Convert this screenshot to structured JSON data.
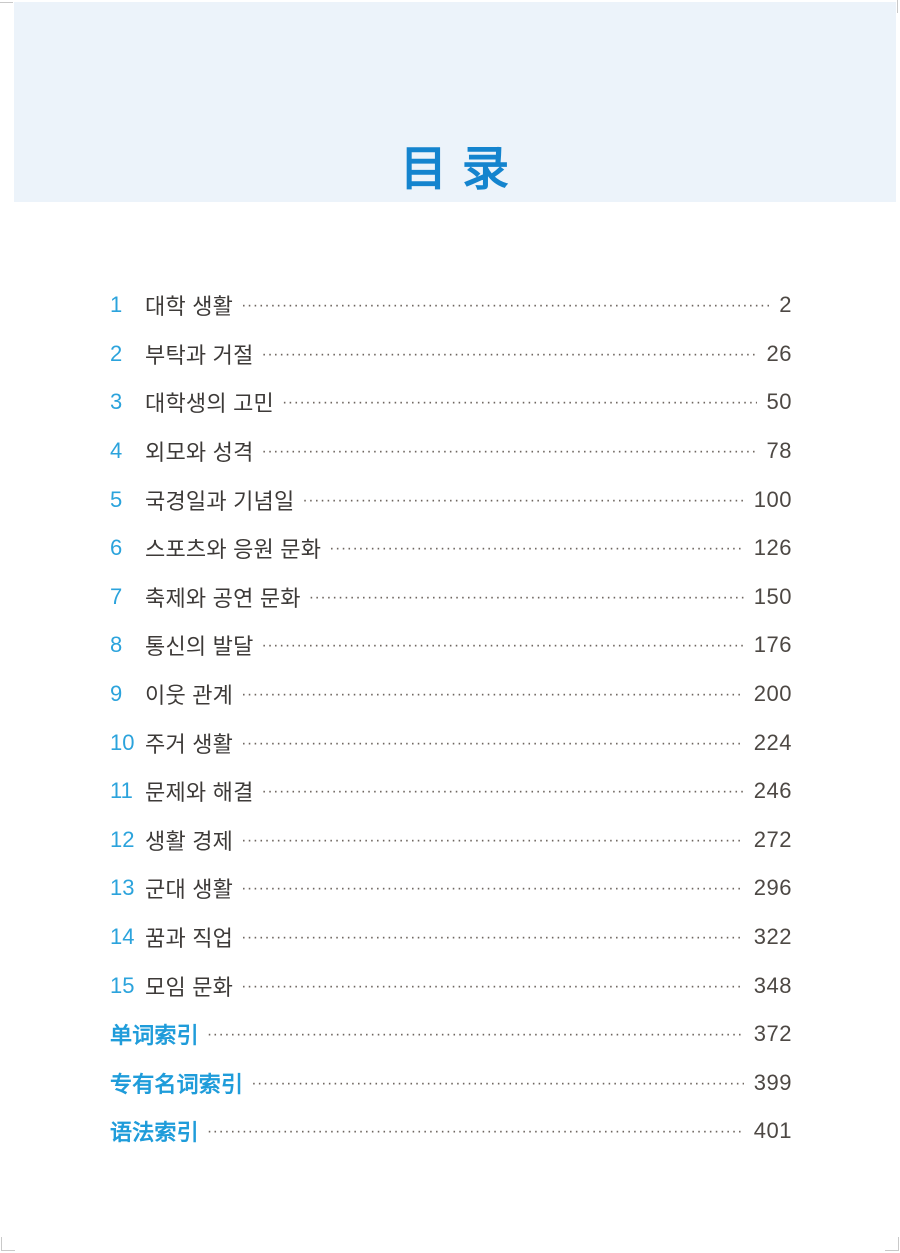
{
  "page": {
    "title": "目 录"
  },
  "toc": {
    "chapters": [
      {
        "num": "1",
        "title": "대학 생활",
        "page": "2"
      },
      {
        "num": "2",
        "title": "부탁과 거절",
        "page": "26"
      },
      {
        "num": "3",
        "title": "대학생의 고민",
        "page": "50"
      },
      {
        "num": "4",
        "title": "외모와 성격",
        "page": "78"
      },
      {
        "num": "5",
        "title": "국경일과 기념일",
        "page": "100"
      },
      {
        "num": "6",
        "title": "스포츠와 응원 문화",
        "page": "126"
      },
      {
        "num": "7",
        "title": "축제와 공연 문화",
        "page": "150"
      },
      {
        "num": "8",
        "title": "통신의 발달",
        "page": "176"
      },
      {
        "num": "9",
        "title": "이웃 관계",
        "page": "200"
      },
      {
        "num": "10",
        "title": "주거 생활",
        "page": "224"
      },
      {
        "num": "11",
        "title": "문제와 해결",
        "page": "246"
      },
      {
        "num": "12",
        "title": "생활 경제",
        "page": "272"
      },
      {
        "num": "13",
        "title": "군대 생활",
        "page": "296"
      },
      {
        "num": "14",
        "title": "꿈과 직업",
        "page": "322"
      },
      {
        "num": "15",
        "title": "모임 문화",
        "page": "348"
      }
    ],
    "indexes": [
      {
        "title": "单词索引",
        "page": "372"
      },
      {
        "title": "专有名词索引",
        "page": "399"
      },
      {
        "title": "语法索引",
        "page": "401"
      }
    ]
  },
  "colors": {
    "accent_blue": "#1484ce",
    "number_blue": "#2ba3dc",
    "index_blue": "#1f9cda",
    "header_bg": "#ecf3fa",
    "body_text": "#3d3a38",
    "page_number_text": "#4d4844",
    "leader_dots": "#6e6660"
  }
}
